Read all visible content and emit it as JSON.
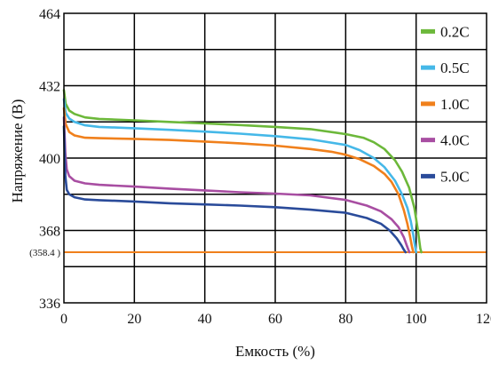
{
  "chart_data": {
    "type": "line",
    "xlabel": "Емкость (%)",
    "ylabel": "Напряжение (В)",
    "xlim": [
      0,
      120
    ],
    "ylim": [
      336,
      464
    ],
    "xticks": [
      0,
      20,
      40,
      60,
      80,
      100,
      120
    ],
    "yticks": [
      336,
      368,
      400,
      432,
      464
    ],
    "grid": true,
    "legend_position": "right",
    "cutoff": {
      "label": "(358.4 )",
      "value": 358.4,
      "color": "#f0801c"
    },
    "series": [
      {
        "name": "0.2C",
        "color": "#6cb83a",
        "x": [
          0,
          0.5,
          1.5,
          3,
          6,
          10,
          20,
          30,
          40,
          50,
          60,
          70,
          80,
          85,
          88,
          91,
          94,
          96,
          98,
          99.5,
          100.5,
          101.2,
          101.5
        ],
        "y": [
          430,
          424,
          421,
          419.5,
          418,
          417.3,
          416.7,
          416,
          415.3,
          414.6,
          413.8,
          412.8,
          410.6,
          409,
          407,
          404,
          399,
          394,
          387,
          378,
          368,
          360,
          358.4
        ]
      },
      {
        "name": "0.5C",
        "color": "#45b8e8",
        "x": [
          0,
          0.5,
          1.5,
          3,
          6,
          10,
          20,
          30,
          40,
          50,
          60,
          70,
          80,
          84,
          88,
          91,
          94,
          96,
          97.5,
          98.5,
          99.2,
          99.7,
          100
        ],
        "y": [
          426,
          420,
          417.5,
          416,
          414.5,
          413.8,
          413.2,
          412.5,
          411.7,
          410.8,
          409.7,
          408.3,
          405.8,
          403.5,
          400,
          396,
          390,
          384,
          378,
          372,
          366,
          361,
          358.4
        ]
      },
      {
        "name": "1.0C",
        "color": "#f0801c",
        "x": [
          0,
          0.5,
          1.5,
          3,
          6,
          10,
          20,
          30,
          40,
          50,
          60,
          70,
          76,
          80,
          84,
          88,
          91,
          93,
          95,
          96.5,
          97.5,
          98.2,
          98.8,
          99.2
        ],
        "y": [
          422,
          415,
          411.5,
          410,
          409,
          408.8,
          408.5,
          408,
          407.3,
          406.5,
          405.5,
          404,
          402.8,
          401.5,
          399.5,
          396.5,
          393,
          389.5,
          384,
          377,
          371,
          366,
          361,
          358.4
        ]
      },
      {
        "name": "4.0C",
        "color": "#a84ea2",
        "x": [
          0,
          0.4,
          0.8,
          1.5,
          3,
          6,
          10,
          20,
          30,
          40,
          50,
          60,
          70,
          80,
          86,
          90,
          93,
          95,
          96.5,
          97.3,
          97.8,
          98.1
        ],
        "y": [
          418,
          402,
          395,
          392,
          390,
          388.8,
          388.2,
          387.4,
          386.5,
          385.7,
          384.9,
          384.3,
          383.5,
          381.5,
          379,
          376.5,
          373,
          369.5,
          365,
          361.5,
          359.5,
          358.4
        ]
      },
      {
        "name": "5.0C",
        "color": "#2a4b9a",
        "x": [
          0,
          0.4,
          0.8,
          1.5,
          3,
          6,
          10,
          20,
          30,
          40,
          50,
          60,
          70,
          80,
          86,
          90,
          92.5,
          94.5,
          95.8,
          96.5,
          97
        ],
        "y": [
          414,
          392,
          386,
          384,
          382.7,
          381.7,
          381.4,
          380.8,
          380,
          379.5,
          379,
          378.3,
          377.2,
          375.8,
          373.5,
          371,
          368,
          364.5,
          361.5,
          359.5,
          358.4
        ]
      }
    ]
  }
}
